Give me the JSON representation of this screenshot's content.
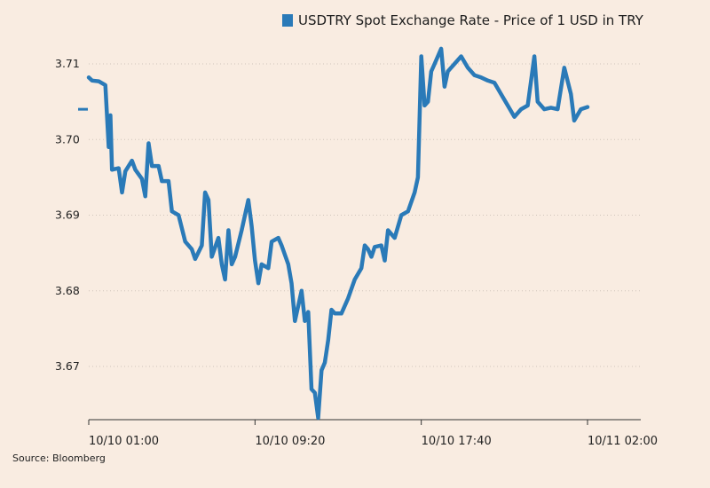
{
  "chart_data": {
    "type": "line",
    "title": "",
    "xlabel": "",
    "ylabel": "",
    "ylim": [
      3.663,
      3.713
    ],
    "y_ticks": [
      "3.67",
      "3.68",
      "3.69",
      "3.70",
      "3.71"
    ],
    "y_tick_values": [
      3.67,
      3.68,
      3.69,
      3.7,
      3.71
    ],
    "x_ticks": [
      "10/10 01:00",
      "10/10 09:20",
      "10/10 17:40",
      "10/11 02:00"
    ],
    "x_tick_values": [
      "2018-10-10 01:00",
      "2018-10-10 09:20",
      "2018-10-10 17:40",
      "2018-10-11 02:00"
    ],
    "grid": "horizontal dotted",
    "legend_position": "top",
    "color": "#2a7ab8",
    "reference_level": 3.704,
    "series": [
      {
        "name": "USDTRY Spot Exchange Rate - Price of 1 USD in TRY",
        "points": [
          [
            "2018-10-10 01:00",
            3.7082
          ],
          [
            "2018-10-10 01:10",
            3.7078
          ],
          [
            "2018-10-10 01:30",
            3.7077
          ],
          [
            "2018-10-10 01:50",
            3.7072
          ],
          [
            "2018-10-10 02:00",
            3.699
          ],
          [
            "2018-10-10 02:05",
            3.7032
          ],
          [
            "2018-10-10 02:10",
            3.696
          ],
          [
            "2018-10-10 02:30",
            3.6962
          ],
          [
            "2018-10-10 02:40",
            3.693
          ],
          [
            "2018-10-10 02:50",
            3.6958
          ],
          [
            "2018-10-10 03:10",
            3.6972
          ],
          [
            "2018-10-10 03:20",
            3.696
          ],
          [
            "2018-10-10 03:40",
            3.6948
          ],
          [
            "2018-10-10 03:50",
            3.6925
          ],
          [
            "2018-10-10 04:00",
            3.6995
          ],
          [
            "2018-10-10 04:10",
            3.6965
          ],
          [
            "2018-10-10 04:30",
            3.6965
          ],
          [
            "2018-10-10 04:40",
            3.6945
          ],
          [
            "2018-10-10 05:00",
            3.6945
          ],
          [
            "2018-10-10 05:10",
            3.6905
          ],
          [
            "2018-10-10 05:30",
            3.69
          ],
          [
            "2018-10-10 05:50",
            3.6865
          ],
          [
            "2018-10-10 06:10",
            3.6855
          ],
          [
            "2018-10-10 06:20",
            3.6842
          ],
          [
            "2018-10-10 06:40",
            3.686
          ],
          [
            "2018-10-10 06:50",
            3.693
          ],
          [
            "2018-10-10 07:00",
            3.692
          ],
          [
            "2018-10-10 07:10",
            3.6845
          ],
          [
            "2018-10-10 07:30",
            3.687
          ],
          [
            "2018-10-10 07:40",
            3.6835
          ],
          [
            "2018-10-10 07:50",
            3.6815
          ],
          [
            "2018-10-10 08:00",
            3.688
          ],
          [
            "2018-10-10 08:10",
            3.6835
          ],
          [
            "2018-10-10 08:20",
            3.6845
          ],
          [
            "2018-10-10 08:40",
            3.688
          ],
          [
            "2018-10-10 09:00",
            3.692
          ],
          [
            "2018-10-10 09:10",
            3.6885
          ],
          [
            "2018-10-10 09:20",
            3.684
          ],
          [
            "2018-10-10 09:30",
            3.681
          ],
          [
            "2018-10-10 09:40",
            3.6835
          ],
          [
            "2018-10-10 10:00",
            3.683
          ],
          [
            "2018-10-10 10:10",
            3.6865
          ],
          [
            "2018-10-10 10:30",
            3.687
          ],
          [
            "2018-10-10 10:40",
            3.686
          ],
          [
            "2018-10-10 11:00",
            3.6835
          ],
          [
            "2018-10-10 11:10",
            3.681
          ],
          [
            "2018-10-10 11:20",
            3.676
          ],
          [
            "2018-10-10 11:40",
            3.68
          ],
          [
            "2018-10-10 11:50",
            3.676
          ],
          [
            "2018-10-10 12:00",
            3.6772
          ],
          [
            "2018-10-10 12:10",
            3.667
          ],
          [
            "2018-10-10 12:20",
            3.6665
          ],
          [
            "2018-10-10 12:30",
            3.6632
          ],
          [
            "2018-10-10 12:40",
            3.6695
          ],
          [
            "2018-10-10 12:50",
            3.6705
          ],
          [
            "2018-10-10 13:00",
            3.6735
          ],
          [
            "2018-10-10 13:10",
            3.6775
          ],
          [
            "2018-10-10 13:20",
            3.677
          ],
          [
            "2018-10-10 13:40",
            3.677
          ],
          [
            "2018-10-10 14:00",
            3.679
          ],
          [
            "2018-10-10 14:20",
            3.6815
          ],
          [
            "2018-10-10 14:40",
            3.683
          ],
          [
            "2018-10-10 14:50",
            3.686
          ],
          [
            "2018-10-10 15:00",
            3.6855
          ],
          [
            "2018-10-10 15:10",
            3.6845
          ],
          [
            "2018-10-10 15:20",
            3.6858
          ],
          [
            "2018-10-10 15:40",
            3.686
          ],
          [
            "2018-10-10 15:50",
            3.684
          ],
          [
            "2018-10-10 16:00",
            3.688
          ],
          [
            "2018-10-10 16:20",
            3.687
          ],
          [
            "2018-10-10 16:40",
            3.69
          ],
          [
            "2018-10-10 17:00",
            3.6905
          ],
          [
            "2018-10-10 17:20",
            3.693
          ],
          [
            "2018-10-10 17:30",
            3.695
          ],
          [
            "2018-10-10 17:40",
            3.711
          ],
          [
            "2018-10-10 17:50",
            3.7045
          ],
          [
            "2018-10-10 18:00",
            3.705
          ],
          [
            "2018-10-10 18:10",
            3.709
          ],
          [
            "2018-10-10 18:20",
            3.71
          ],
          [
            "2018-10-10 18:40",
            3.712
          ],
          [
            "2018-10-10 18:50",
            3.707
          ],
          [
            "2018-10-10 19:00",
            3.709
          ],
          [
            "2018-10-10 19:20",
            3.71
          ],
          [
            "2018-10-10 19:40",
            3.711
          ],
          [
            "2018-10-10 20:00",
            3.7095
          ],
          [
            "2018-10-10 20:20",
            3.7085
          ],
          [
            "2018-10-10 20:40",
            3.7082
          ],
          [
            "2018-10-10 21:00",
            3.7078
          ],
          [
            "2018-10-10 21:20",
            3.7075
          ],
          [
            "2018-10-10 21:40",
            3.706
          ],
          [
            "2018-10-10 22:00",
            3.7045
          ],
          [
            "2018-10-10 22:20",
            3.703
          ],
          [
            "2018-10-10 22:40",
            3.704
          ],
          [
            "2018-10-10 23:00",
            3.7045
          ],
          [
            "2018-10-10 23:20",
            3.711
          ],
          [
            "2018-10-10 23:30",
            3.705
          ],
          [
            "2018-10-10 23:50",
            3.704
          ],
          [
            "2018-10-11 00:10",
            3.7042
          ],
          [
            "2018-10-11 00:30",
            3.704
          ],
          [
            "2018-10-11 00:50",
            3.7095
          ],
          [
            "2018-10-11 01:10",
            3.706
          ],
          [
            "2018-10-11 01:20",
            3.7025
          ],
          [
            "2018-10-11 01:40",
            3.704
          ],
          [
            "2018-10-11 02:00",
            3.7043
          ]
        ]
      }
    ]
  },
  "legend": {
    "label": "USDTRY Spot Exchange Rate - Price of 1 USD in TRY"
  },
  "source": "Source: Bloomberg"
}
